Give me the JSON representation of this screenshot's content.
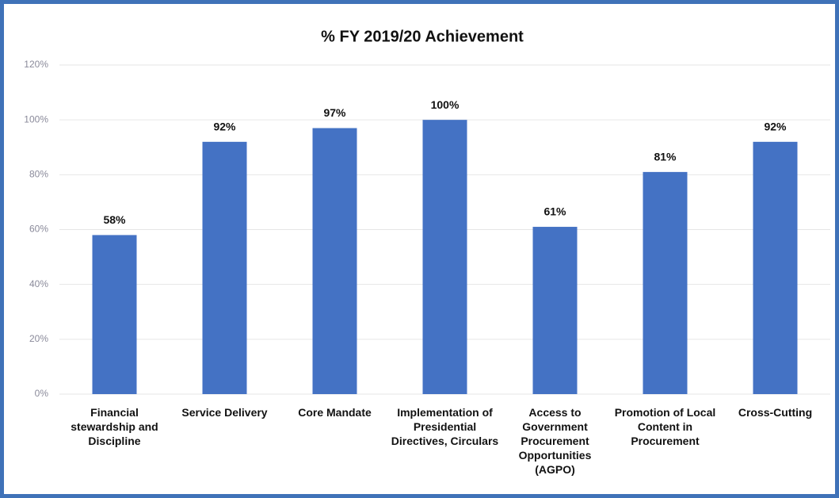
{
  "chart_data": {
    "type": "bar",
    "title": "% FY 2019/20 Achievement",
    "categories": [
      "Financial stewardship and Discipline",
      "Service Delivery",
      "Core Mandate",
      "Implementation of Presidential Directives, Circulars",
      "Access to Government Procurement Opportunities (AGPO)",
      "Promotion of Local Content in Procurement",
      "Cross-Cutting"
    ],
    "values": [
      58,
      92,
      97,
      100,
      61,
      81,
      92
    ],
    "value_labels": [
      "58%",
      "92%",
      "97%",
      "100%",
      "61%",
      "81%",
      "92%"
    ],
    "color": "#4472c4",
    "ylim": [
      0,
      120
    ],
    "yticks": [
      {
        "value": 0,
        "label": "0%"
      },
      {
        "value": 20,
        "label": "20%"
      },
      {
        "value": 40,
        "label": "40%"
      },
      {
        "value": 60,
        "label": "60%"
      },
      {
        "value": 80,
        "label": "80%"
      },
      {
        "value": 100,
        "label": "100%"
      },
      {
        "value": 120,
        "label": "120%"
      }
    ],
    "grid": true
  }
}
